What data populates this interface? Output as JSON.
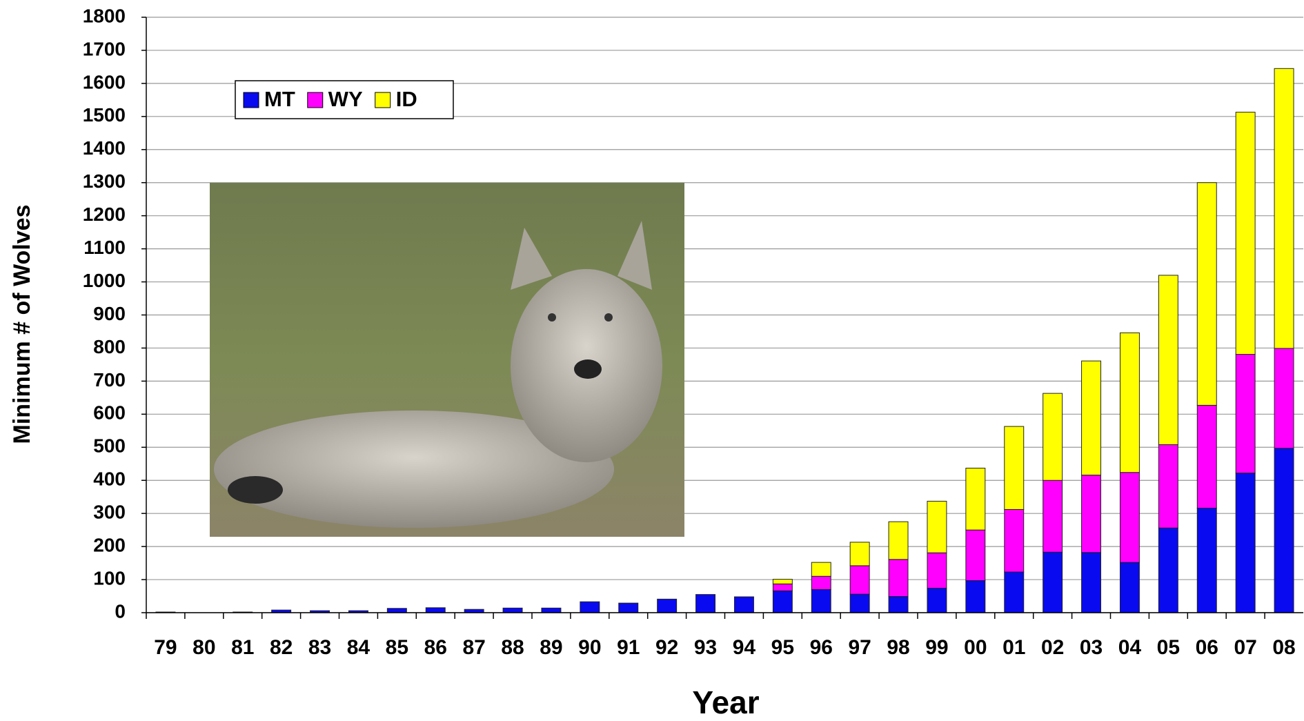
{
  "chart_data": {
    "type": "bar",
    "stacked": true,
    "xlabel": "Year",
    "ylabel": "Minimum # of Wolves",
    "categories": [
      "79",
      "80",
      "81",
      "82",
      "83",
      "84",
      "85",
      "86",
      "87",
      "88",
      "89",
      "90",
      "91",
      "92",
      "93",
      "94",
      "95",
      "96",
      "97",
      "98",
      "99",
      "00",
      "01",
      "02",
      "03",
      "04",
      "05",
      "06",
      "07",
      "08"
    ],
    "series": [
      {
        "name": "MT",
        "color": "#0a0af0",
        "values": [
          2,
          0,
          2,
          8,
          6,
          6,
          13,
          15,
          10,
          14,
          14,
          33,
          29,
          41,
          55,
          48,
          66,
          70,
          56,
          49,
          74,
          97,
          123,
          183,
          182,
          152,
          256,
          316,
          422,
          497
        ]
      },
      {
        "name": "WY",
        "color": "#ff00ff",
        "values": [
          0,
          0,
          0,
          0,
          0,
          0,
          0,
          0,
          0,
          0,
          0,
          0,
          0,
          0,
          0,
          0,
          21,
          40,
          86,
          112,
          107,
          153,
          189,
          217,
          234,
          272,
          252,
          311,
          359,
          302
        ]
      },
      {
        "name": "ID",
        "color": "#ffff00",
        "values": [
          0,
          0,
          0,
          0,
          0,
          0,
          0,
          0,
          0,
          0,
          0,
          0,
          0,
          0,
          0,
          0,
          14,
          42,
          71,
          114,
          156,
          187,
          251,
          263,
          345,
          422,
          512,
          673,
          732,
          846
        ]
      }
    ],
    "ylim": [
      0,
      1800
    ],
    "yticks": [
      0,
      100,
      200,
      300,
      400,
      500,
      600,
      700,
      800,
      900,
      1000,
      1100,
      1200,
      1300,
      1400,
      1500,
      1600,
      1700,
      1800
    ],
    "grid": true,
    "legend": "upper left"
  }
}
